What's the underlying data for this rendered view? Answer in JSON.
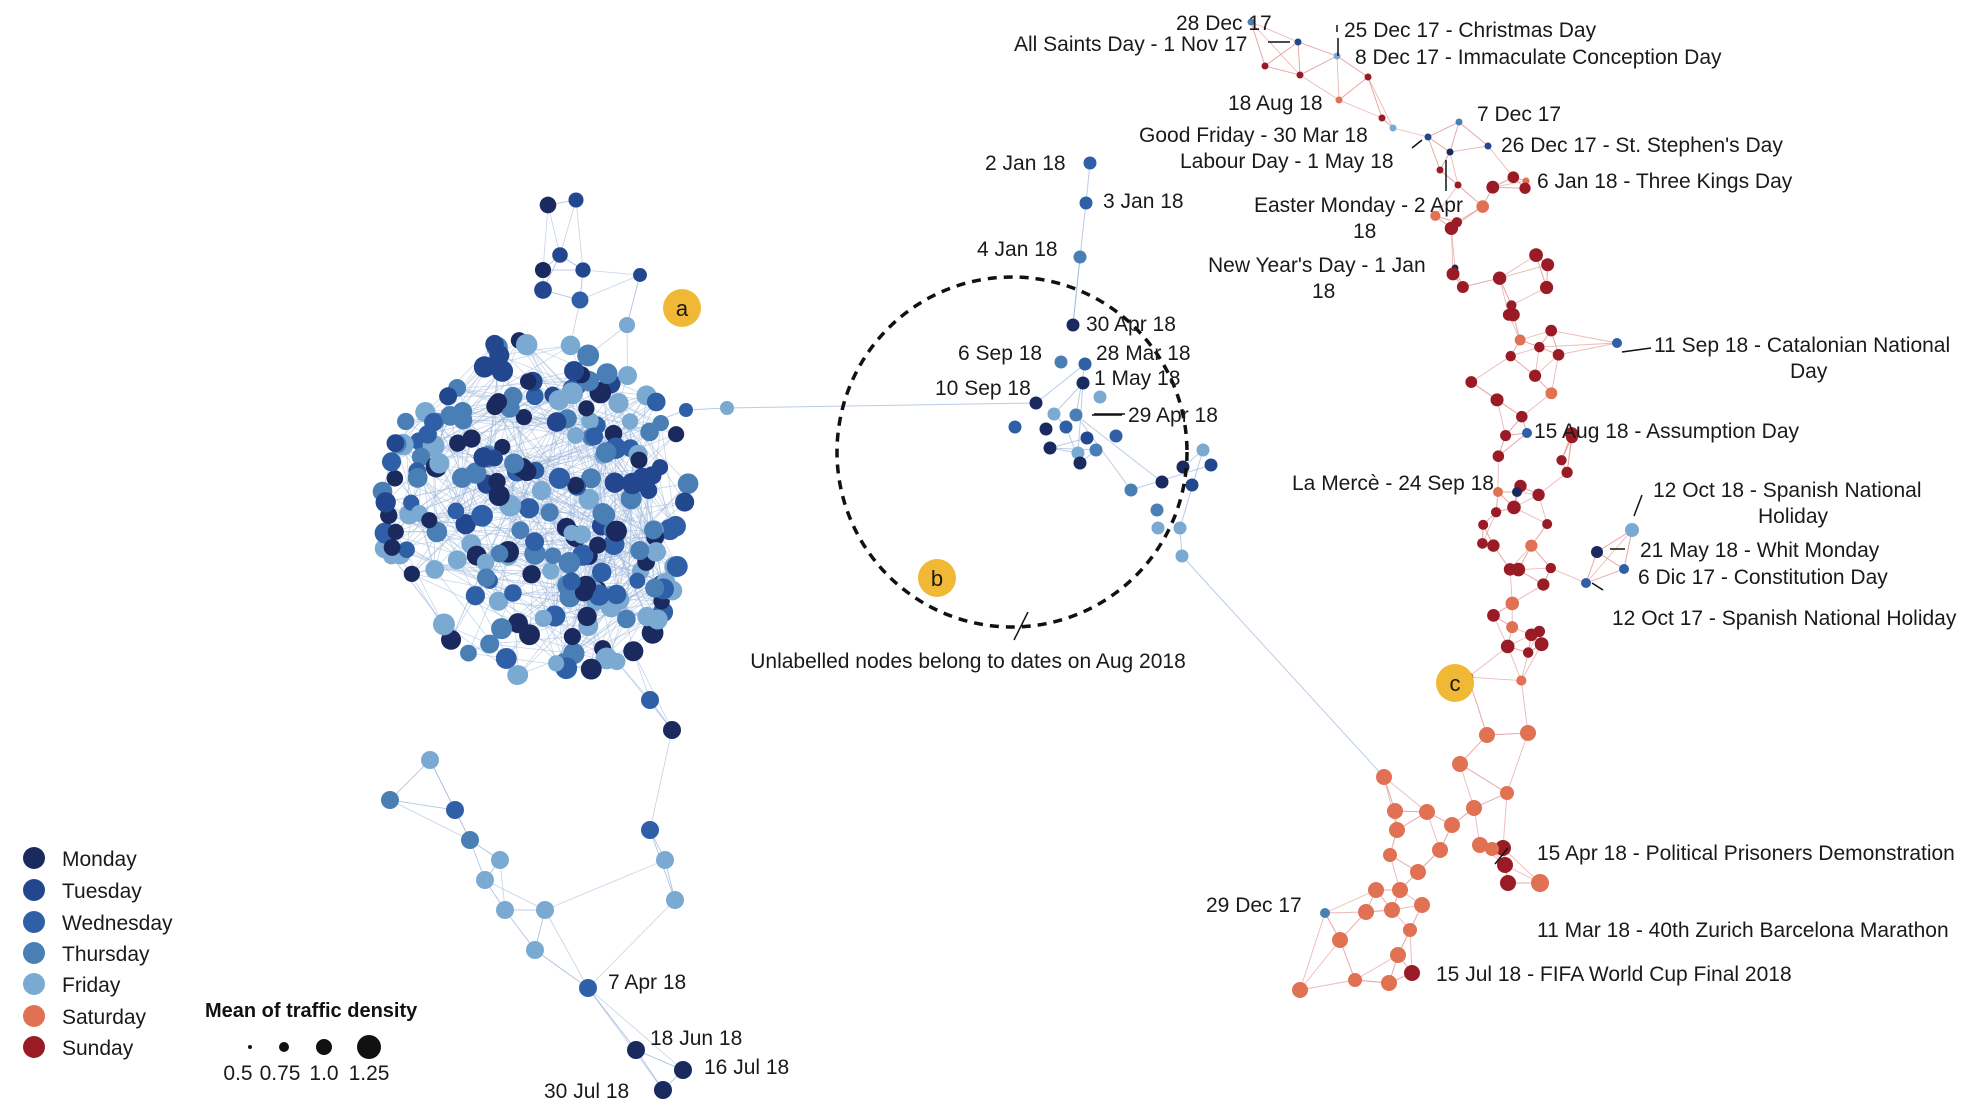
{
  "colors": {
    "Monday": "#1b2a5e",
    "Tuesday": "#23478f",
    "Wednesday": "#2f5fa6",
    "Thursday": "#4a7fb5",
    "Friday": "#7aa9d2",
    "Saturday": "#e07152",
    "Sunday": "#981b25",
    "badge": "#f0b835",
    "edge_blue": "#9db6da",
    "edge_red": "#e6a1a1"
  },
  "badges": [
    "a",
    "b",
    "c"
  ],
  "circle_note": "Unlabelled nodes belong to dates on Aug 2018",
  "legend": {
    "days": [
      {
        "key": "Monday",
        "label": "Monday"
      },
      {
        "key": "Tuesday",
        "label": "Tuesday"
      },
      {
        "key": "Wednesday",
        "label": "Wednesday"
      },
      {
        "key": "Thursday",
        "label": "Thursday"
      },
      {
        "key": "Friday",
        "label": "Friday"
      },
      {
        "key": "Saturday",
        "label": "Saturday"
      },
      {
        "key": "Sunday",
        "label": "Sunday"
      }
    ],
    "size_title": "Mean of traffic density",
    "size_values": [
      "0.5",
      "0.75",
      "1.0",
      "1.25"
    ]
  },
  "labels": {
    "a": [
      "7 Apr 18",
      "18 Jun 18",
      "16 Jul 18",
      "30 Jul 18"
    ],
    "b": [
      "2 Jan 18",
      "3 Jan 18",
      "4 Jan 18",
      "30 Apr 18",
      "6 Sep 18",
      "28 Mar 18",
      "1 May 18",
      "10 Sep 18",
      "29 Apr 18"
    ],
    "c_top": [
      "28 Dec 17",
      "25 Dec 17 - Christmas Day",
      "All Saints Day - 1 Nov 17",
      "8 Dec 17 - Immaculate Conception Day",
      "18 Aug 18",
      "7 Dec 17",
      "Good Friday - 30 Mar 18",
      "26 Dec 17 - St. Stephen's Day",
      "Labour Day - 1 May 18",
      "6 Jan 18 - Three Kings Day",
      "Easter Monday - 2 Apr",
      "18",
      "New Year's Day - 1 Jan",
      "18"
    ],
    "c_mid": [
      "11 Sep 18 - Catalonian National",
      "Day",
      "15 Aug 18 - Assumption Day",
      "La Mercè - 24 Sep 18",
      "12 Oct 18 - Spanish National",
      "Holiday",
      "21 May 18 - Whit Monday",
      "6 Dic 17 - Constitution Day",
      "12 Oct 17 - Spanish National Holiday"
    ],
    "c_bottom": [
      "15 Apr 18 - Political Prisoners Demonstration",
      "29 Dec 17",
      "11 Mar 18 - 40th Zurich Barcelona Marathon",
      "15 Jul 18 - FIFA World Cup Final 2018"
    ]
  }
}
